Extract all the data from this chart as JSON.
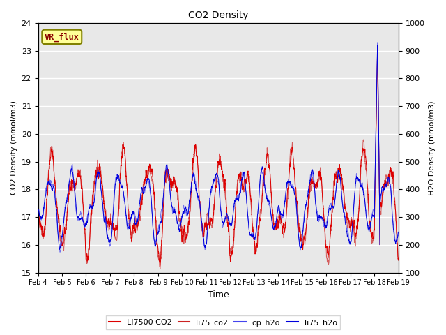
{
  "title": "CO2 Density",
  "xlabel": "Time",
  "ylabel_left": "CO2 Density (mmol/m3)",
  "ylabel_right": "H2O Density (mmol/m3)",
  "ylim_left": [
    15.0,
    24.0
  ],
  "ylim_right": [
    100,
    1000
  ],
  "yticks_left": [
    15.0,
    16.0,
    17.0,
    18.0,
    19.0,
    20.0,
    21.0,
    22.0,
    23.0,
    24.0
  ],
  "yticks_right": [
    100,
    200,
    300,
    400,
    500,
    600,
    700,
    800,
    900,
    1000
  ],
  "xtick_labels": [
    "Feb 4",
    "Feb 5",
    "Feb 6",
    "Feb 7",
    "Feb 8",
    "Feb 9",
    "Feb 10",
    "Feb 11",
    "Feb 12",
    "Feb 13",
    "Feb 14",
    "Feb 15",
    "Feb 16",
    "Feb 17",
    "Feb 18",
    "Feb 19"
  ],
  "color_LI7500": "#dd0000",
  "color_li75_co2": "#dd0000",
  "color_op_h2o": "#0000dd",
  "color_li75_h2o": "#0000dd",
  "legend_labels": [
    "LI7500 CO2",
    "li75_co2",
    "op_h2o",
    "li75_h2o"
  ],
  "vr_flux_label": "VR_flux",
  "fig_bg": "#ffffff",
  "plot_bg": "#e8e8e8",
  "grid_color": "#ffffff",
  "n_points": 2880
}
